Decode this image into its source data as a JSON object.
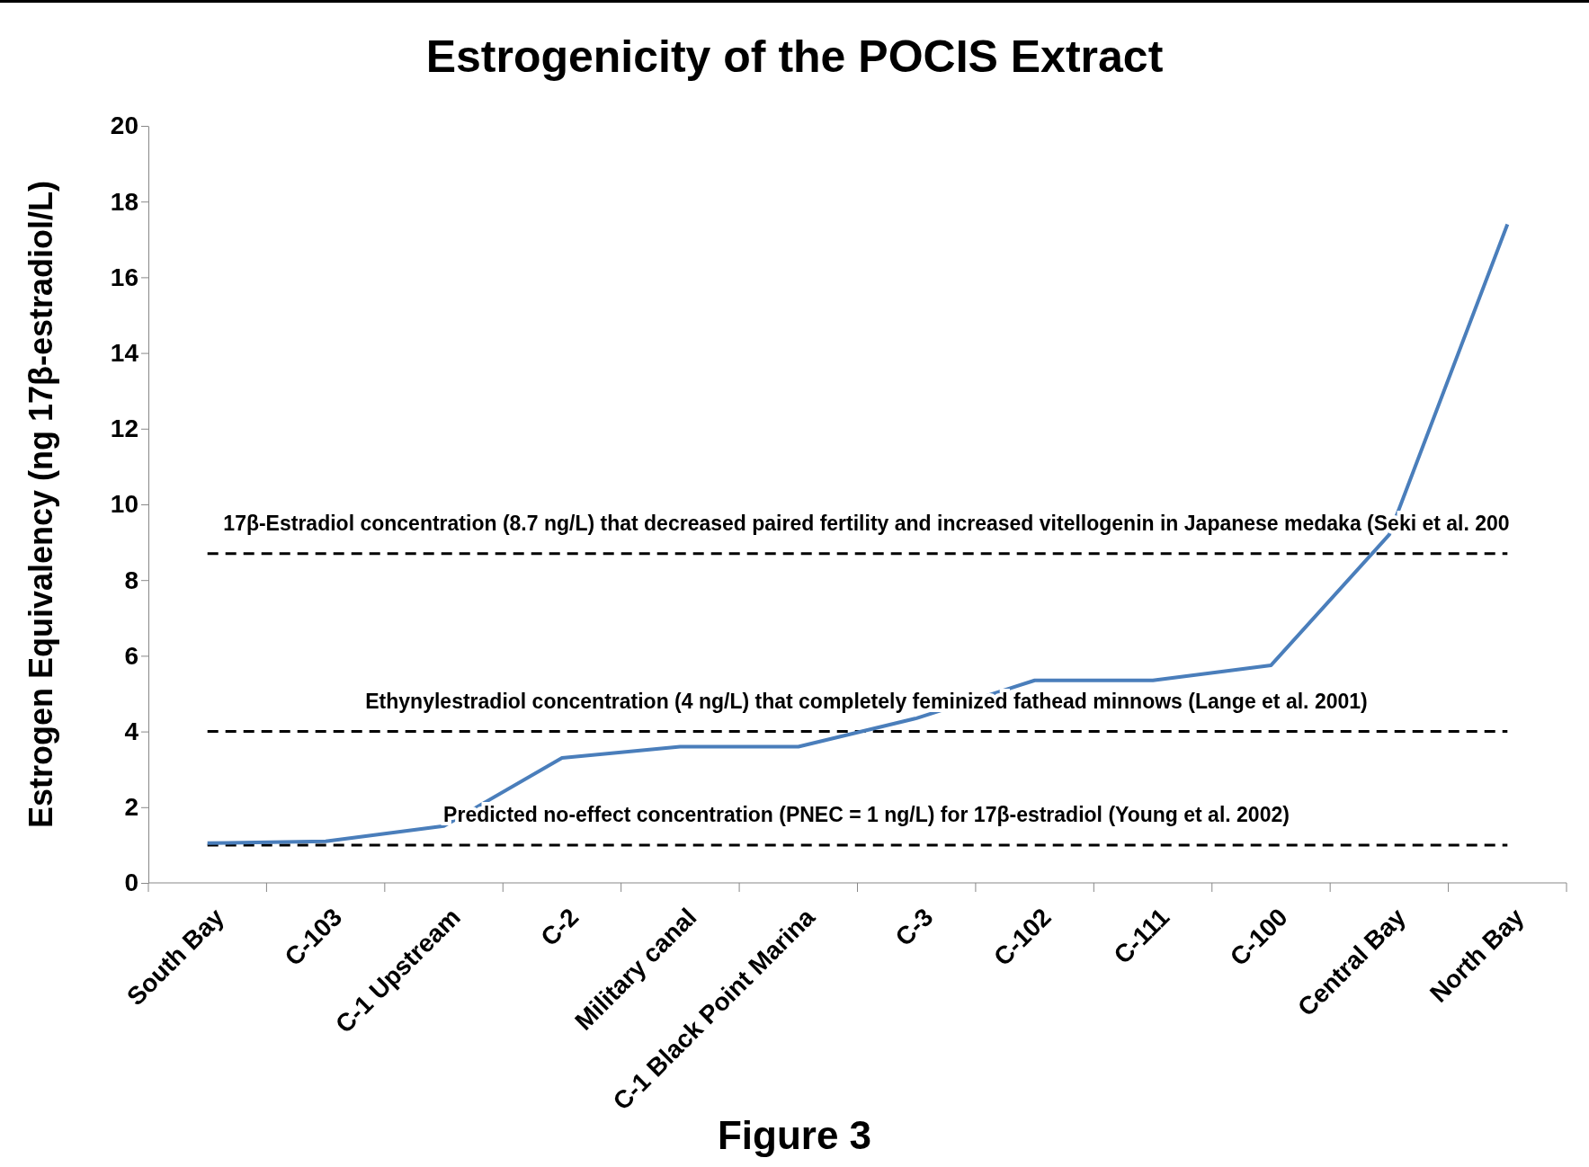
{
  "chart_data": {
    "type": "line",
    "title": "Estrogenicity of the POCIS Extract",
    "ylabel": "Estrogen Equivalency (ng 17β-estradiol/L)",
    "categories": [
      "South Bay",
      "C-103",
      "C-1 Upstream",
      "C-2",
      "Military canal",
      "C-1 Black Point Marina",
      "C-3",
      "C-102",
      "C-111",
      "C-100",
      "Central Bay",
      "North Bay"
    ],
    "series": [
      {
        "color": "#4a7ebb",
        "values": [
          1.05,
          1.1,
          1.5,
          3.3,
          3.6,
          3.6,
          4.35,
          5.35,
          5.35,
          5.75,
          9.2,
          17.4
        ]
      }
    ],
    "ylim": [
      0,
      20
    ],
    "yticks": [
      0,
      2,
      4,
      6,
      8,
      10,
      12,
      14,
      16,
      18,
      20
    ],
    "grid": false,
    "marker": "none",
    "line_style": "solid",
    "ref_lines": [
      {
        "axis": "y",
        "value": 8.7,
        "label": "17β-Estradiol concentration (8.7 ng/L) that decreased paired fertility and increased vitellogenin in Japanese medaka (Seki et al. 200",
        "color": "#000000",
        "line_style": "dashed"
      },
      {
        "axis": "y",
        "value": 4,
        "label": "Ethynylestradiol concentration (4 ng/L) that completely feminized fathead minnows (Lange et al. 2001)",
        "color": "#000000",
        "line_style": "dashed"
      },
      {
        "axis": "y",
        "value": 1,
        "label": "Predicted no-effect concentration (PNEC = 1 ng/L) for 17β-estradiol (Young et al. 2002)",
        "color": "#000000",
        "line_style": "dashed"
      }
    ],
    "annotations": [
      "Figure 3"
    ]
  }
}
